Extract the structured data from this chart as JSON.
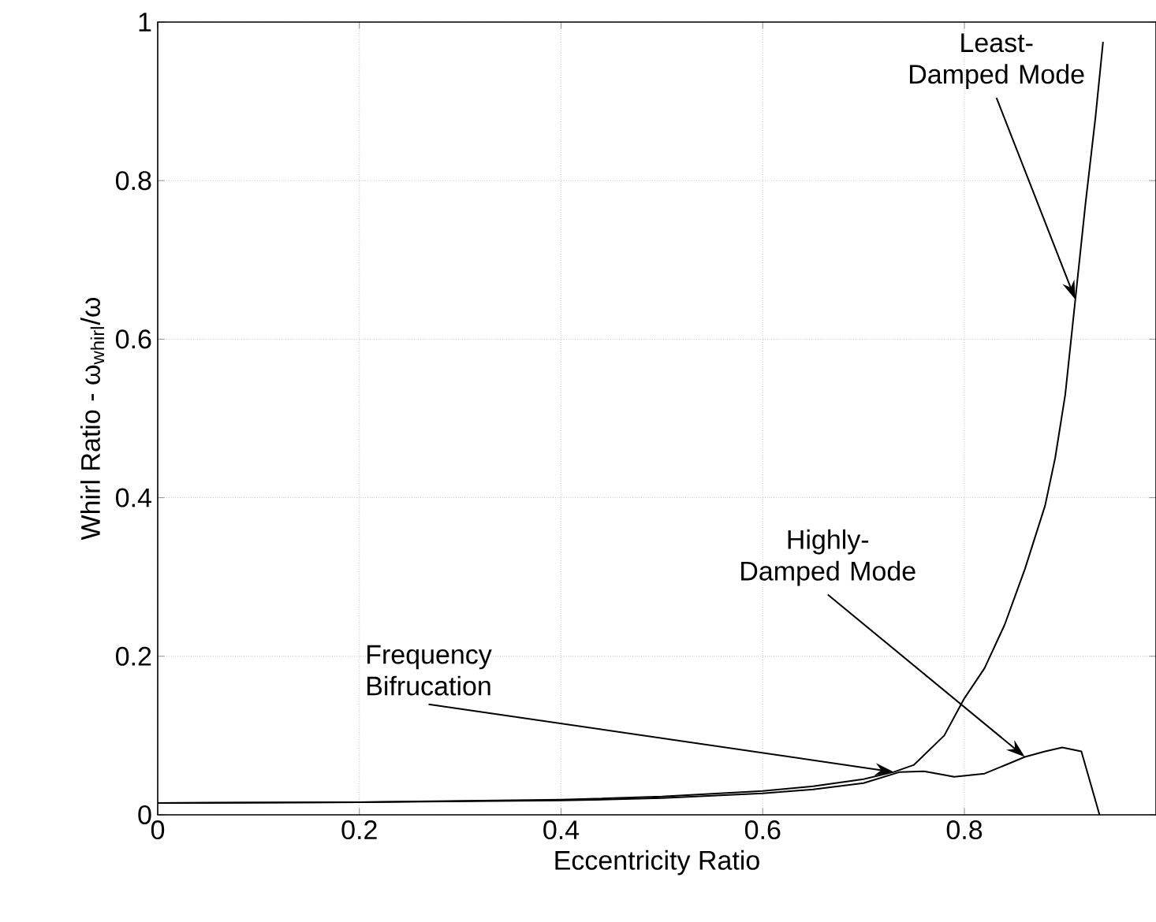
{
  "chart_data": {
    "type": "line",
    "xlabel": "Eccentricity Ratio",
    "ylabel": "Whirl Ratio - ω$_{whirl}$/ω",
    "xlim": [
      0,
      0.99
    ],
    "ylim": [
      0,
      1
    ],
    "xticks": [
      0,
      0.2,
      0.4,
      0.6,
      0.8
    ],
    "yticks": [
      0,
      0.2,
      0.4,
      0.6,
      0.8,
      1
    ],
    "grid": true,
    "line_style": "solid",
    "marker": "none",
    "series": [
      {
        "color": "#000000",
        "x": [
          0,
          0.2,
          0.4,
          0.5,
          0.6,
          0.65,
          0.7,
          0.73,
          0.75,
          0.78,
          0.8,
          0.82,
          0.84,
          0.86,
          0.88,
          0.89,
          0.9,
          0.91,
          0.92,
          0.93,
          0.9375
        ],
        "values": [
          0.015,
          0.016,
          0.019,
          0.023,
          0.03,
          0.036,
          0.045,
          0.054,
          0.063,
          0.1,
          0.147,
          0.185,
          0.24,
          0.31,
          0.39,
          0.45,
          0.53,
          0.65,
          0.77,
          0.88,
          0.975
        ]
      },
      {
        "color": "#000000",
        "x": [
          0,
          0.2,
          0.4,
          0.5,
          0.6,
          0.65,
          0.7,
          0.736,
          0.76,
          0.79,
          0.82,
          0.86,
          0.88,
          0.897,
          0.916,
          0.934
        ],
        "values": [
          0.015,
          0.016,
          0.018,
          0.021,
          0.027,
          0.032,
          0.04,
          0.054,
          0.055,
          0.048,
          0.052,
          0.073,
          0.08,
          0.085,
          0.08,
          0
        ]
      }
    ],
    "annotations": [
      {
        "text": "Least-Damped Mode",
        "x": 0.91,
        "y": 0.65
      },
      {
        "text": "Highly-Damped Mode",
        "x": 0.86,
        "y": 0.073
      },
      {
        "text": "Frequency Bifrucation",
        "x": 0.73,
        "y": 0.054
      }
    ]
  }
}
